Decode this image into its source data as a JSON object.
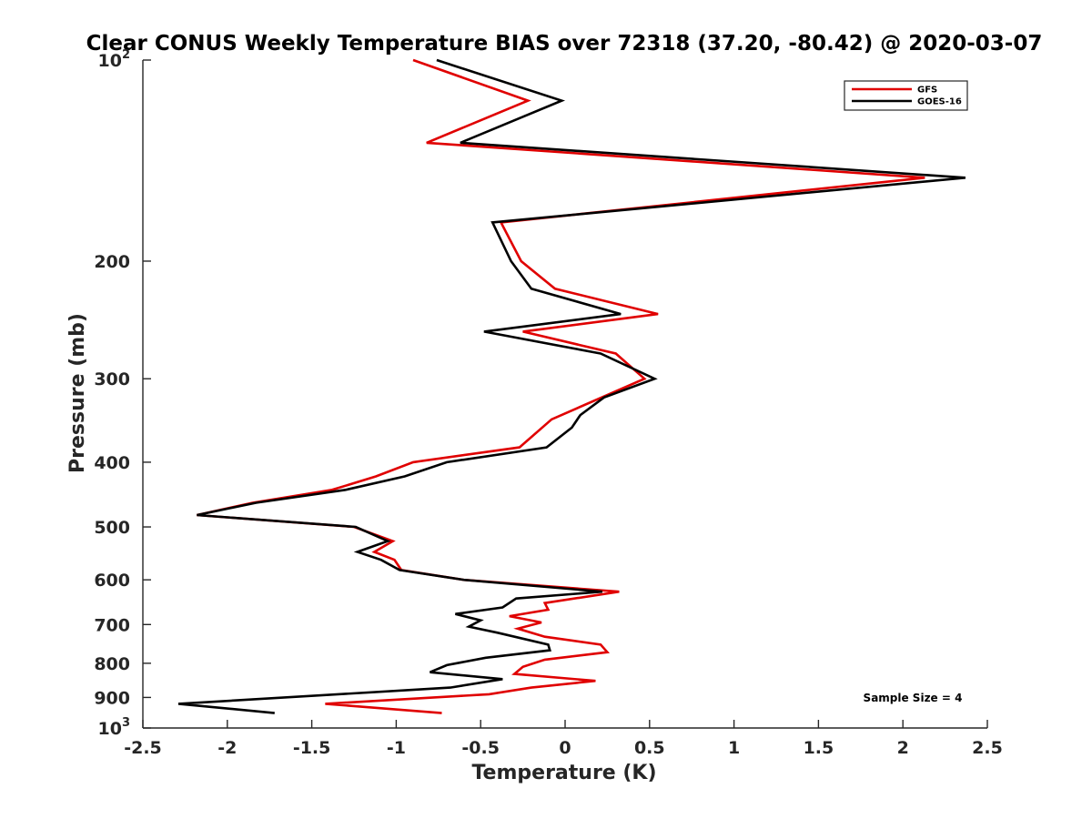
{
  "chart_data": {
    "type": "line",
    "title": "Clear CONUS Weekly Temperature BIAS over 72318 (37.20, -80.42) @ 2020-03-07",
    "xlabel": "Temperature (K)",
    "ylabel": "Pressure (mb)",
    "xlim": [
      -2.5,
      2.5
    ],
    "ylim": [
      100,
      1000
    ],
    "y_scale": "log",
    "y_reversed": true,
    "grid": false,
    "legend_position": "top-right",
    "x_ticks": [
      "-2.5",
      "-2",
      "-1.5",
      "-1",
      "-0.5",
      "0",
      "0.5",
      "1",
      "1.5",
      "2",
      "2.5"
    ],
    "y_ticks": [
      {
        "value": 100,
        "base": "10",
        "exp": "2"
      },
      {
        "value": 200,
        "label": "200"
      },
      {
        "value": 300,
        "label": "300"
      },
      {
        "value": 400,
        "label": "400"
      },
      {
        "value": 500,
        "label": "500"
      },
      {
        "value": 600,
        "label": "600"
      },
      {
        "value": 700,
        "label": "700"
      },
      {
        "value": 800,
        "label": "800"
      },
      {
        "value": 900,
        "label": "900"
      },
      {
        "value": 1000,
        "base": "10",
        "exp": "3"
      }
    ],
    "annotation": "Sample Size = 4",
    "series": [
      {
        "name": "GFS",
        "color": "#e00000",
        "points": [
          [
            -0.9,
            100
          ],
          [
            -0.22,
            115
          ],
          [
            -0.82,
            133
          ],
          [
            2.13,
            150
          ],
          [
            -0.38,
            175
          ],
          [
            -0.26,
            200
          ],
          [
            -0.06,
            220
          ],
          [
            0.55,
            240
          ],
          [
            -0.25,
            255
          ],
          [
            0.3,
            275
          ],
          [
            0.47,
            300
          ],
          [
            -0.08,
            345
          ],
          [
            -0.27,
            380
          ],
          [
            -0.9,
            400
          ],
          [
            -1.12,
            420
          ],
          [
            -1.38,
            440
          ],
          [
            -1.85,
            460
          ],
          [
            -2.18,
            480
          ],
          [
            -1.25,
            500
          ],
          [
            -1.02,
            525
          ],
          [
            -1.13,
            545
          ],
          [
            -1.01,
            560
          ],
          [
            -0.97,
            580
          ],
          [
            -0.6,
            600
          ],
          [
            0.32,
            625
          ],
          [
            -0.12,
            650
          ],
          [
            -0.1,
            665
          ],
          [
            -0.33,
            680
          ],
          [
            -0.14,
            695
          ],
          [
            -0.28,
            710
          ],
          [
            -0.12,
            730
          ],
          [
            0.21,
            750
          ],
          [
            0.25,
            770
          ],
          [
            -0.12,
            790
          ],
          [
            -0.25,
            810
          ],
          [
            -0.3,
            830
          ],
          [
            0.18,
            850
          ],
          [
            -0.2,
            870
          ],
          [
            -0.45,
            890
          ],
          [
            -1.42,
            920
          ],
          [
            -0.73,
            950
          ]
        ]
      },
      {
        "name": "GOES-16",
        "color": "#000000",
        "points": [
          [
            -0.76,
            100
          ],
          [
            -0.02,
            115
          ],
          [
            -0.62,
            133
          ],
          [
            2.37,
            150
          ],
          [
            -0.43,
            175
          ],
          [
            -0.32,
            200
          ],
          [
            -0.2,
            220
          ],
          [
            0.33,
            240
          ],
          [
            -0.48,
            255
          ],
          [
            0.21,
            275
          ],
          [
            0.53,
            300
          ],
          [
            0.23,
            320
          ],
          [
            0.09,
            340
          ],
          [
            0.04,
            355
          ],
          [
            -0.11,
            380
          ],
          [
            -0.7,
            400
          ],
          [
            -0.95,
            420
          ],
          [
            -1.3,
            440
          ],
          [
            -1.83,
            460
          ],
          [
            -2.18,
            480
          ],
          [
            -1.24,
            500
          ],
          [
            -1.05,
            525
          ],
          [
            -1.23,
            545
          ],
          [
            -1.09,
            560
          ],
          [
            -0.98,
            580
          ],
          [
            -0.6,
            600
          ],
          [
            0.22,
            625
          ],
          [
            -0.29,
            640
          ],
          [
            -0.37,
            660
          ],
          [
            -0.65,
            675
          ],
          [
            -0.5,
            690
          ],
          [
            -0.57,
            705
          ],
          [
            -0.4,
            720
          ],
          [
            -0.1,
            750
          ],
          [
            -0.09,
            765
          ],
          [
            -0.47,
            785
          ],
          [
            -0.7,
            805
          ],
          [
            -0.8,
            825
          ],
          [
            -0.37,
            845
          ],
          [
            -0.68,
            870
          ],
          [
            -2.29,
            920
          ],
          [
            -1.72,
            950
          ]
        ]
      }
    ]
  }
}
